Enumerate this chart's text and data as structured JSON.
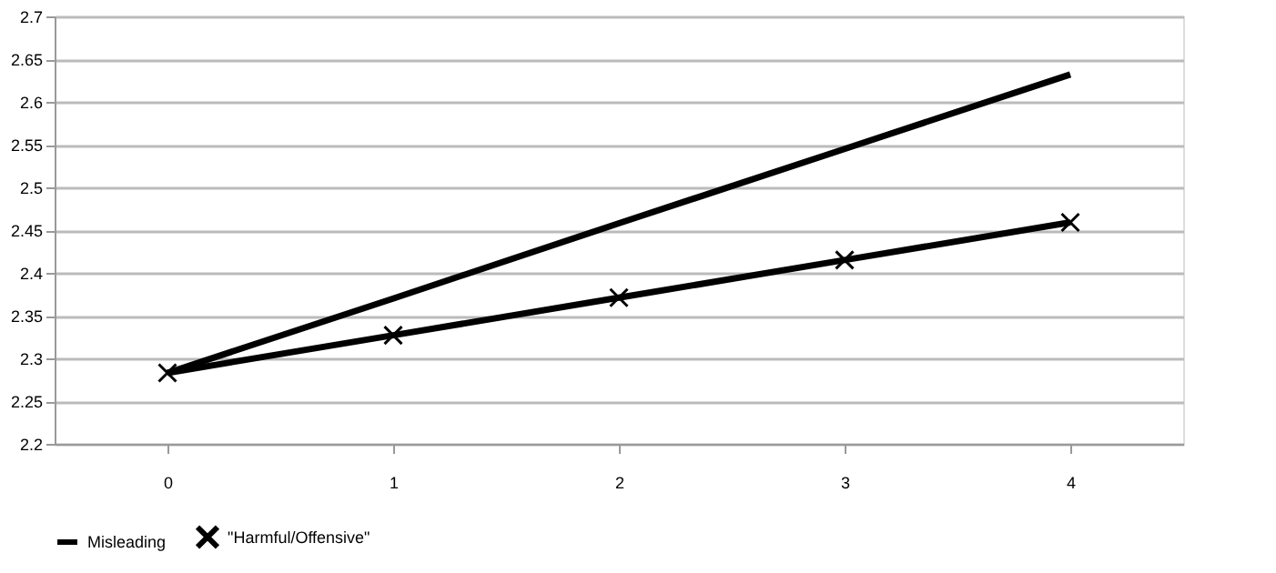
{
  "chart_data": {
    "type": "line",
    "categories": [
      "0",
      "1",
      "2",
      "3",
      "4"
    ],
    "series": [
      {
        "name": "Misleading",
        "color": "#000000",
        "values": [
          2.283,
          2.37,
          2.458,
          2.545,
          2.632
        ],
        "marker": "none"
      },
      {
        "name": "\"Harmful/Offensive\"",
        "color": "#000000",
        "values": [
          2.283,
          2.327,
          2.371,
          2.415,
          2.459
        ],
        "marker": "cross"
      }
    ],
    "ylim": [
      2.2,
      2.7
    ],
    "yticks": [
      2.2,
      2.25,
      2.3,
      2.35,
      2.4,
      2.45,
      2.5,
      2.55,
      2.6,
      2.65,
      2.7
    ],
    "grid": "y",
    "legend": "bottom",
    "line_style": "solid"
  }
}
